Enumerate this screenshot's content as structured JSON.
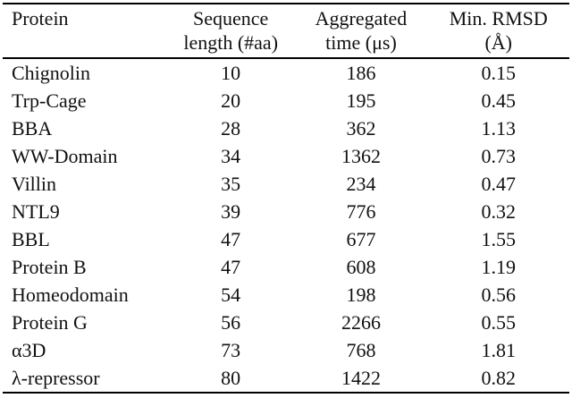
{
  "colors": {
    "background": "#ffffff",
    "text": "#111111",
    "rule": "#000000"
  },
  "table": {
    "columns": [
      {
        "line1": "Protein",
        "line2": ""
      },
      {
        "line1": "Sequence",
        "line2": "length (#aa)"
      },
      {
        "line1": "Aggregated",
        "line2": "time (μs)"
      },
      {
        "line1": "Min. RMSD",
        "line2": "(Å)"
      }
    ],
    "rows": [
      [
        "Chignolin",
        "10",
        "186",
        "0.15"
      ],
      [
        "Trp-Cage",
        "20",
        "195",
        "0.45"
      ],
      [
        "BBA",
        "28",
        "362",
        "1.13"
      ],
      [
        "WW-Domain",
        "34",
        "1362",
        "0.73"
      ],
      [
        "Villin",
        "35",
        "234",
        "0.47"
      ],
      [
        "NTL9",
        "39",
        "776",
        "0.32"
      ],
      [
        "BBL",
        "47",
        "677",
        "1.55"
      ],
      [
        "Protein B",
        "47",
        "608",
        "1.19"
      ],
      [
        "Homeodomain",
        "54",
        "198",
        "0.56"
      ],
      [
        "Protein G",
        "56",
        "2266",
        "0.55"
      ],
      [
        "α3D",
        "73",
        "768",
        "1.81"
      ],
      [
        "λ-repressor",
        "80",
        "1422",
        "0.82"
      ]
    ]
  }
}
